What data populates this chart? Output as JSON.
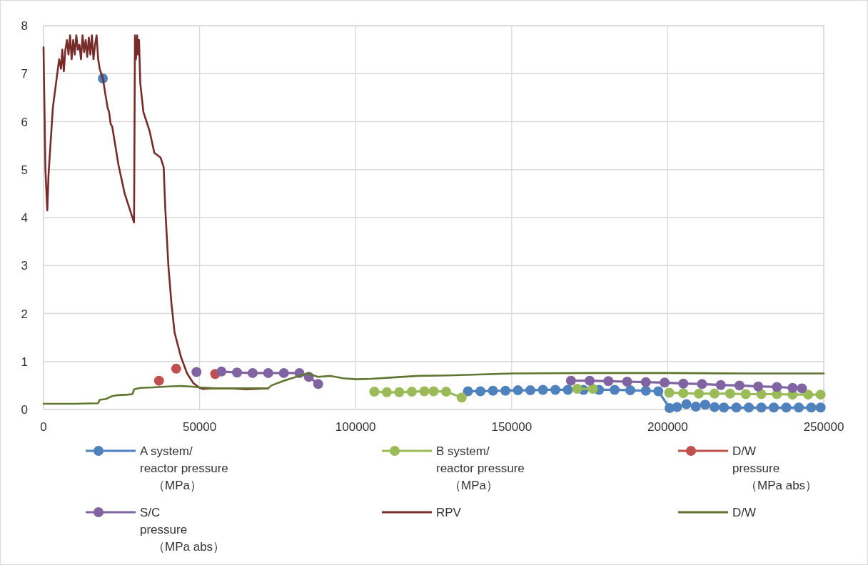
{
  "chart_data": {
    "type": "line",
    "xlim": [
      0,
      250000
    ],
    "ylim": [
      0,
      8
    ],
    "xticks": [
      0,
      50000,
      100000,
      150000,
      200000,
      250000
    ],
    "yticks": [
      0,
      1,
      2,
      3,
      4,
      5,
      6,
      7,
      8
    ],
    "grid": true,
    "legend": "bottom",
    "series": [
      {
        "name": "A system/\nreactor pressure\n（MPa）",
        "color": "#4f81bd",
        "marker": "circle",
        "x": [
          19000,
          null,
          136000,
          140000,
          144000,
          148000,
          152000,
          156000,
          160000,
          164000,
          168000,
          173000,
          178000,
          183000,
          188000,
          193000,
          197000,
          200600,
          203000,
          206000,
          209000,
          212000,
          215000,
          218000,
          222000,
          226000,
          230000,
          234000,
          238000,
          242000,
          246000,
          249000
        ],
        "values": [
          6.9,
          null,
          0.38,
          0.38,
          0.39,
          0.39,
          0.4,
          0.4,
          0.41,
          0.41,
          0.41,
          0.41,
          0.41,
          0.41,
          0.4,
          0.39,
          0.38,
          0.03,
          0.05,
          0.11,
          0.06,
          0.1,
          0.05,
          0.04,
          0.04,
          0.04,
          0.04,
          0.04,
          0.04,
          0.04,
          0.04,
          0.04
        ]
      },
      {
        "name": "B system/\nreactor pressure\n（MPa）",
        "color": "#9bbb59",
        "marker": "circle",
        "x": [
          106000,
          110000,
          114000,
          118000,
          122000,
          125000,
          129000,
          134000,
          null,
          171000,
          176000,
          null,
          200500,
          205000,
          210000,
          215000,
          220000,
          225000,
          230000,
          235000,
          240000,
          245000,
          249000
        ],
        "values": [
          0.37,
          0.36,
          0.36,
          0.37,
          0.38,
          0.38,
          0.37,
          0.25,
          null,
          0.43,
          0.43,
          null,
          0.35,
          0.34,
          0.33,
          0.33,
          0.33,
          0.32,
          0.32,
          0.32,
          0.31,
          0.31,
          0.31
        ]
      },
      {
        "name": "D/W\npressure\n（MPa abs）",
        "color": "#c0504d",
        "type": "scatter",
        "marker": "circle",
        "x": [
          37000,
          null,
          42500,
          null,
          55000
        ],
        "values": [
          0.6,
          null,
          0.85,
          null,
          0.74
        ]
      },
      {
        "name": "S/C\npressure\n（MPa abs）",
        "color": "#8064a2",
        "marker": "circle",
        "x": [
          49000,
          null,
          57000,
          62000,
          67000,
          72000,
          77000,
          82000,
          85000,
          88000,
          null,
          169000,
          175000,
          181000,
          187000,
          193000,
          199000,
          205000,
          211000,
          217000,
          223000,
          229000,
          235000,
          240000,
          243000
        ],
        "values": [
          0.78,
          null,
          0.79,
          0.77,
          0.76,
          0.76,
          0.76,
          0.76,
          0.68,
          0.53,
          null,
          0.6,
          0.6,
          0.59,
          0.58,
          0.57,
          0.56,
          0.54,
          0.53,
          0.51,
          0.5,
          0.48,
          0.47,
          0.45,
          0.44
        ]
      },
      {
        "name": "RPV",
        "color": "#772c2a",
        "marker": "none",
        "x": [
          0,
          600,
          1200,
          1600,
          2200,
          3000,
          4000,
          5000,
          5600,
          6000,
          6500,
          7000,
          7500,
          8000,
          8500,
          9000,
          9500,
          10000,
          10500,
          11000,
          11500,
          12000,
          12500,
          13000,
          13500,
          14000,
          14500,
          15000,
          15500,
          16000,
          16500,
          17000,
          17500,
          18000,
          18500,
          19000,
          20000,
          20500,
          21000,
          21500,
          22000,
          24000,
          26000,
          28000,
          29000,
          29300,
          29600,
          30000,
          30300,
          30600,
          31000,
          32000,
          33000,
          34000,
          35000,
          35500,
          36500,
          37500,
          38500,
          39000,
          40000,
          41000,
          42000,
          44000,
          46000,
          48000,
          50000,
          51000,
          54000,
          60000,
          65000,
          72000
        ],
        "values": [
          7.55,
          5.0,
          4.15,
          4.9,
          5.5,
          6.3,
          6.8,
          7.3,
          7.1,
          7.5,
          7.05,
          7.5,
          7.7,
          7.4,
          7.8,
          7.3,
          7.7,
          7.4,
          7.8,
          7.5,
          7.6,
          7.3,
          7.8,
          7.45,
          7.7,
          7.35,
          7.75,
          7.4,
          7.8,
          7.3,
          7.6,
          7.8,
          7.3,
          7.1,
          7.0,
          6.9,
          6.5,
          6.3,
          6.2,
          5.95,
          5.9,
          5.1,
          4.5,
          4.1,
          3.9,
          7.8,
          7.3,
          7.8,
          7.4,
          7.7,
          6.8,
          6.2,
          6.0,
          5.8,
          5.5,
          5.35,
          5.3,
          5.25,
          5.05,
          4.2,
          3.0,
          2.2,
          1.6,
          1.1,
          0.75,
          0.55,
          0.45,
          0.43,
          0.44,
          0.44,
          0.42,
          0.44
        ]
      },
      {
        "name": "D/W",
        "color": "#5f7530",
        "marker": "none",
        "x": [
          0,
          10000,
          17500,
          18000,
          20000,
          22000,
          24000,
          27000,
          28500,
          29000,
          31000,
          35000,
          40000,
          44000,
          47000,
          50000,
          55000,
          60000,
          66000,
          72000,
          73000,
          75000,
          78000,
          81000,
          84000,
          85000,
          86000,
          88000,
          92000,
          96000,
          100000,
          105000,
          110000,
          120000,
          130000,
          150000,
          175000,
          200000,
          225000,
          250000
        ],
        "values": [
          0.12,
          0.12,
          0.13,
          0.2,
          0.22,
          0.28,
          0.3,
          0.31,
          0.32,
          0.42,
          0.45,
          0.46,
          0.48,
          0.49,
          0.48,
          0.46,
          0.44,
          0.44,
          0.44,
          0.44,
          0.5,
          0.55,
          0.62,
          0.68,
          0.74,
          0.76,
          0.72,
          0.68,
          0.7,
          0.65,
          0.63,
          0.64,
          0.66,
          0.7,
          0.71,
          0.75,
          0.76,
          0.76,
          0.75,
          0.75
        ]
      }
    ]
  }
}
